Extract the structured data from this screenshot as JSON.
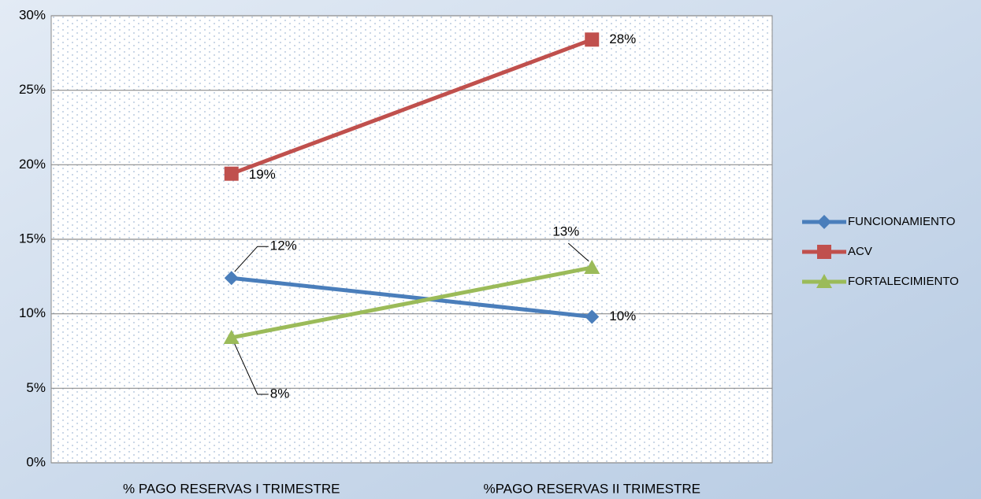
{
  "chart_data": {
    "type": "line",
    "categories": [
      "% PAGO RESERVAS I TRIMESTRE",
      "%PAGO RESERVAS II TRIMESTRE"
    ],
    "series": [
      {
        "name": "FUNCIONAMIENTO",
        "color": "#4a7ebb",
        "marker": "diamond",
        "values": [
          12.4,
          9.8
        ],
        "value_labels": [
          "12%",
          "10%"
        ]
      },
      {
        "name": "ACV",
        "color": "#c0504d",
        "marker": "square",
        "values": [
          19.4,
          28.4
        ],
        "value_labels": [
          "19%",
          "28%"
        ]
      },
      {
        "name": "FORTALECIMIENTO",
        "color": "#9bbb59",
        "marker": "triangle",
        "values": [
          8.4,
          13.1
        ],
        "value_labels": [
          "8%",
          "13%"
        ]
      }
    ],
    "ylim": [
      0,
      30
    ],
    "yticks": [
      {
        "value": 0,
        "label": "0%"
      },
      {
        "value": 5,
        "label": "5%"
      },
      {
        "value": 10,
        "label": "10%"
      },
      {
        "value": 15,
        "label": "15%"
      },
      {
        "value": 20,
        "label": "20%"
      },
      {
        "value": 25,
        "label": "25%"
      },
      {
        "value": 30,
        "label": "30%"
      }
    ],
    "grid": true,
    "legend": "right"
  }
}
